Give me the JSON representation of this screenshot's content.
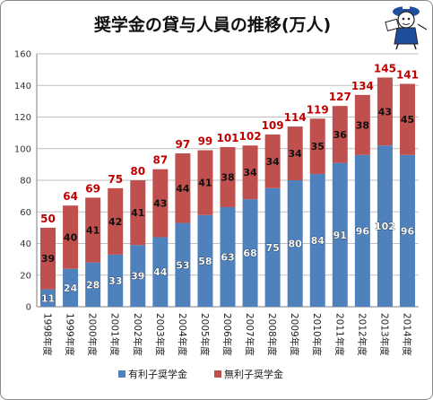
{
  "chart_data": {
    "type": "bar",
    "stacked": true,
    "title": "奨学金の貸与人員の推移(万人)",
    "xlabel": "",
    "ylabel": "",
    "categories": [
      "1998年度",
      "1999年度",
      "2000年度",
      "2001年度",
      "2002年度",
      "2003年度",
      "2004年度",
      "2005年度",
      "2006年度",
      "2007年度",
      "2008年度",
      "2009年度",
      "2010年度",
      "2011年度",
      "2012年度",
      "2013年度",
      "2014年度"
    ],
    "series": [
      {
        "name": "有利子奨学金",
        "color": "#4f81bd",
        "values": [
          11,
          24,
          28,
          33,
          39,
          44,
          53,
          58,
          63,
          68,
          75,
          80,
          84,
          91,
          96,
          102,
          96
        ]
      },
      {
        "name": "無利子奨学金",
        "color": "#c0504d",
        "values": [
          39,
          40,
          41,
          42,
          41,
          43,
          44,
          41,
          38,
          34,
          34,
          34,
          35,
          36,
          38,
          43,
          45
        ]
      }
    ],
    "totals": [
      50,
      64,
      69,
      75,
      80,
      87,
      97,
      99,
      101,
      102,
      109,
      114,
      119,
      127,
      134,
      145,
      141
    ],
    "ylim": [
      0,
      160
    ],
    "yticks": [
      0,
      20,
      40,
      60,
      80,
      100,
      120,
      140,
      160
    ],
    "grid": true,
    "legend": "bottom",
    "colors": {
      "totals": "#c00000",
      "grid": "#bfbfbf",
      "axis": "#7f7f7f"
    }
  }
}
